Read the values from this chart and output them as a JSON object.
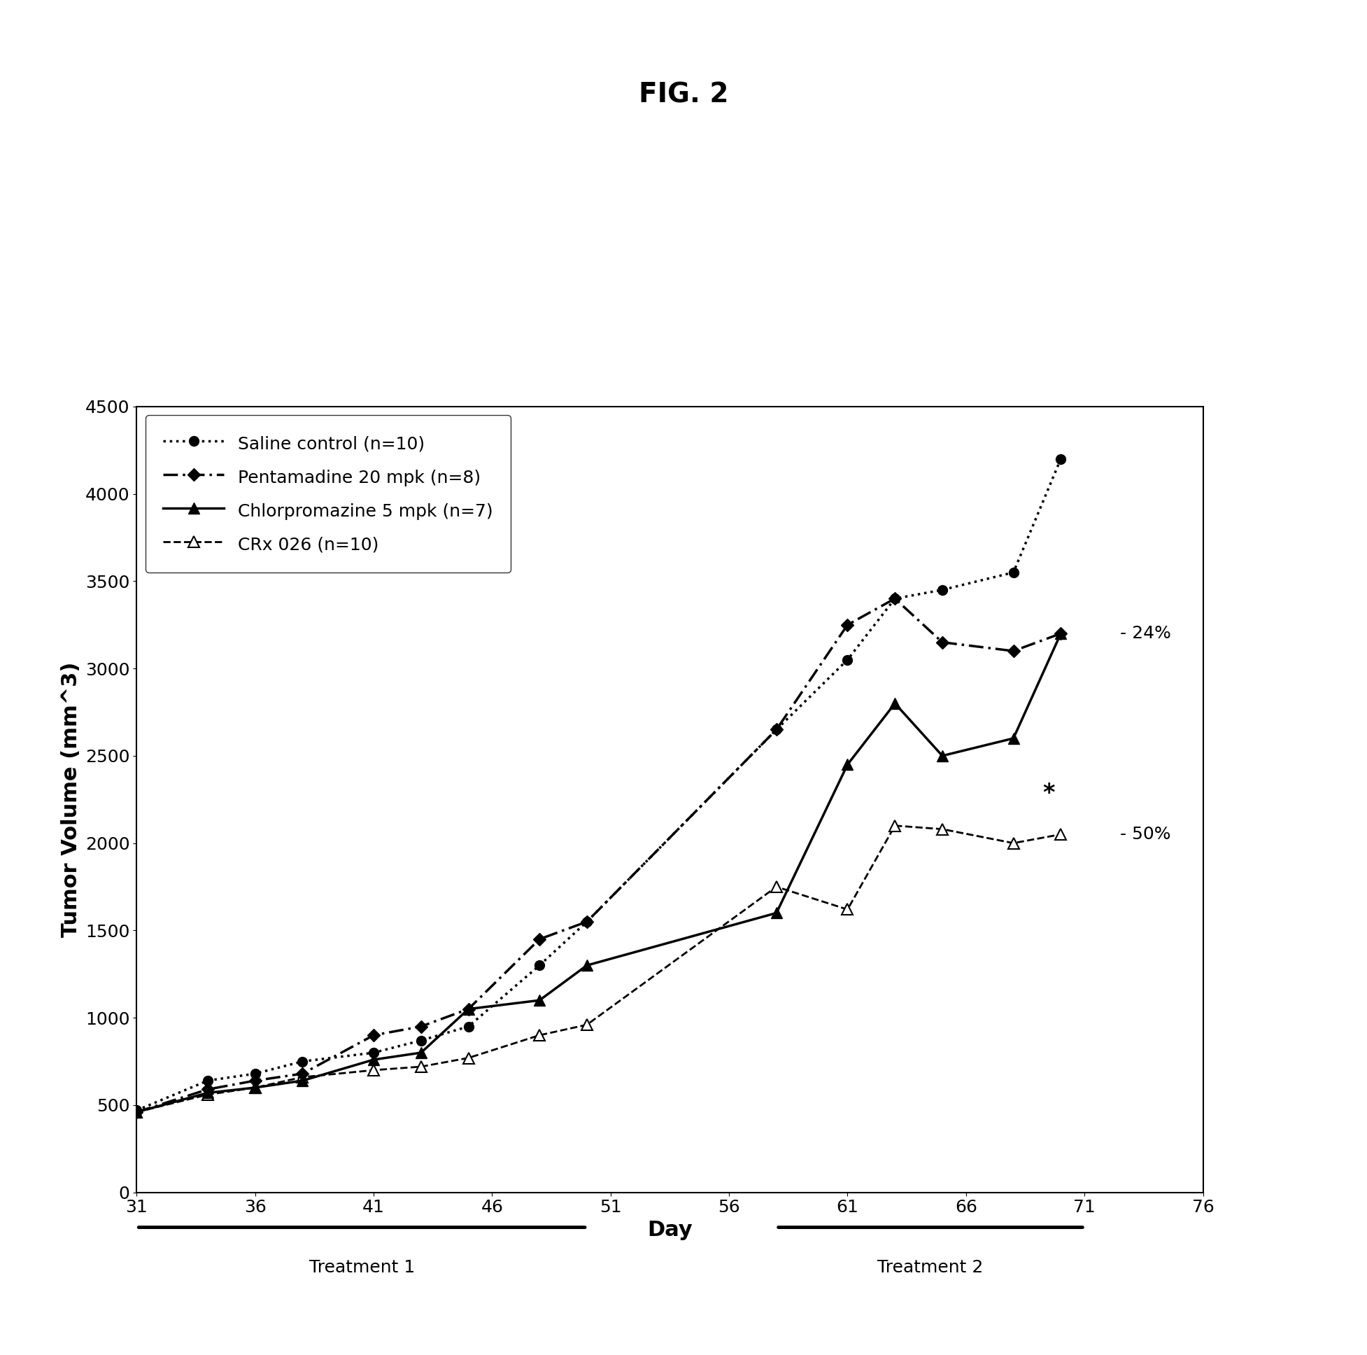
{
  "title": "FIG. 2",
  "xlabel": "Day",
  "ylabel": "Tumor Volume (mm^3)",
  "xlim": [
    31,
    76
  ],
  "ylim": [
    0,
    4500
  ],
  "xticks": [
    31,
    36,
    41,
    46,
    51,
    56,
    61,
    66,
    71,
    76
  ],
  "yticks": [
    0,
    500,
    1000,
    1500,
    2000,
    2500,
    3000,
    3500,
    4000,
    4500
  ],
  "saline_x": [
    31,
    34,
    36,
    38,
    41,
    43,
    45,
    48,
    50,
    58,
    61,
    63,
    65,
    68,
    70
  ],
  "saline_y": [
    470,
    640,
    680,
    750,
    800,
    870,
    950,
    1300,
    1550,
    2650,
    3050,
    3400,
    3450,
    3550,
    4200
  ],
  "pentamadine_x": [
    31,
    34,
    36,
    38,
    41,
    43,
    45,
    48,
    50,
    58,
    61,
    63,
    65,
    68,
    70
  ],
  "pentamadine_y": [
    460,
    590,
    640,
    680,
    900,
    950,
    1050,
    1450,
    1550,
    2650,
    3250,
    3400,
    3150,
    3100,
    3200
  ],
  "chlorpromazine_x": [
    31,
    34,
    36,
    38,
    41,
    43,
    45,
    48,
    50,
    58,
    61,
    63,
    65,
    68,
    70
  ],
  "chlorpromazine_y": [
    460,
    570,
    600,
    640,
    760,
    800,
    1050,
    1100,
    1300,
    1600,
    2450,
    2800,
    2500,
    2600,
    3200
  ],
  "crx_x": [
    31,
    34,
    36,
    38,
    41,
    43,
    45,
    48,
    50,
    58,
    61,
    63,
    65,
    68,
    70
  ],
  "crx_y": [
    460,
    560,
    600,
    660,
    700,
    720,
    770,
    900,
    960,
    1750,
    1620,
    2100,
    2080,
    2000,
    2050
  ],
  "annotation_24": "- 24%",
  "annotation_50": "- 50%",
  "annotation_star": "*",
  "treatment1_label": "Treatment 1",
  "treatment2_label": "Treatment 2",
  "treatment1_x_start": 31,
  "treatment1_x_end": 50,
  "treatment2_x_start": 58,
  "treatment2_x_end": 71,
  "background_color": "#ffffff",
  "line_color": "#000000",
  "title_fontsize": 28,
  "label_fontsize": 22,
  "tick_fontsize": 18,
  "legend_fontsize": 18,
  "annot_fontsize": 18
}
